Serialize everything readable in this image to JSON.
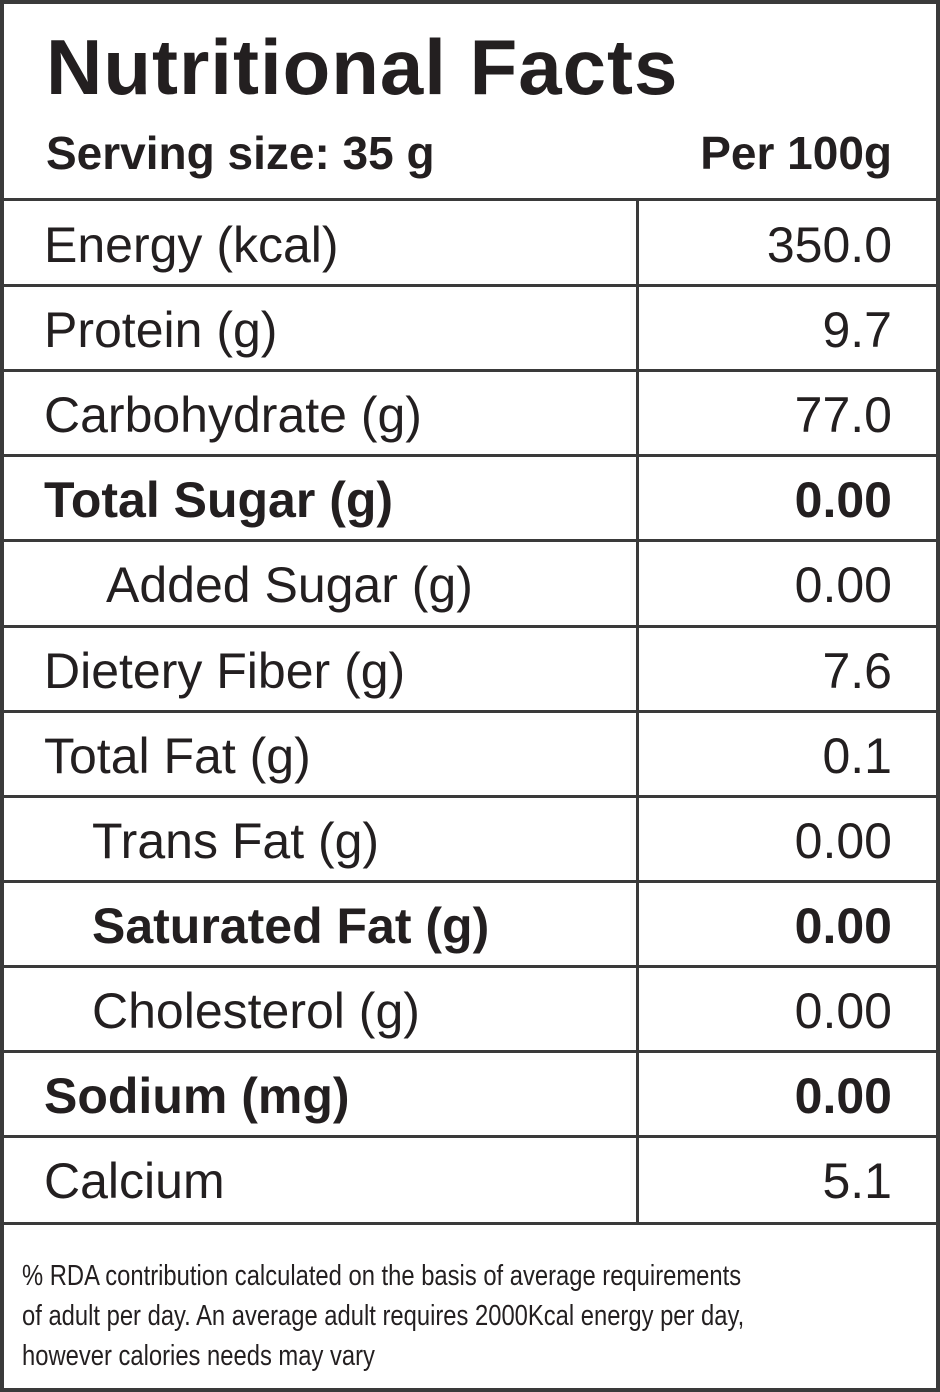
{
  "header": {
    "title": "Nutritional Facts",
    "serving": "Serving size: 35 g",
    "per": "Per 100g"
  },
  "table": {
    "rows": [
      [
        "Energy (kcal)",
        "350.0"
      ],
      [
        "Protein (g)",
        "9.7"
      ],
      [
        "Carbohydrate (g)",
        "77.0"
      ],
      [
        "Total Sugar (g)",
        "0.00"
      ],
      [
        "Added Sugar (g)",
        "0.00"
      ],
      [
        "Dietery Fiber (g)",
        "7.6"
      ],
      [
        "Total Fat (g)",
        "0.1"
      ],
      [
        "Trans Fat (g)",
        "0.00"
      ],
      [
        "Saturated Fat (g)",
        "0.00"
      ],
      [
        "Cholesterol (g)",
        "0.00"
      ],
      [
        "Sodium (mg)",
        "0.00"
      ],
      [
        "Calcium",
        "5.1"
      ]
    ]
  },
  "footnote": {
    "lines": [
      "% RDA contribution calculated on the basis of average requirements",
      "of adult per day. An average adult requires 2000Kcal energy per day,",
      "however calories needs may vary"
    ]
  }
}
